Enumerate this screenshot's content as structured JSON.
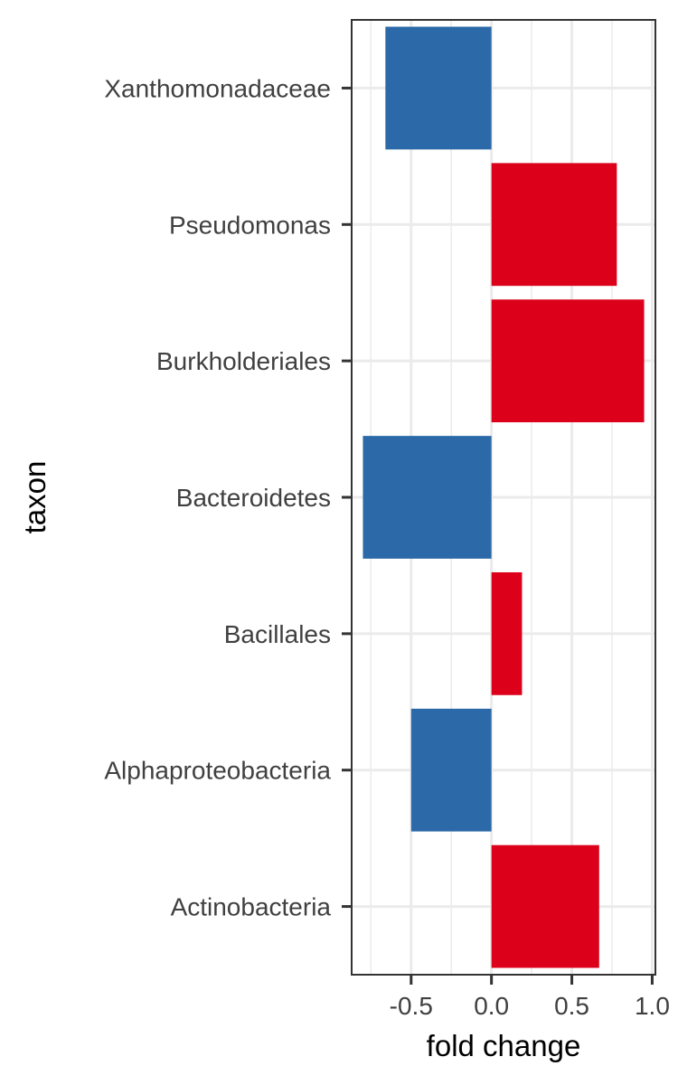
{
  "chart_data": {
    "type": "bar",
    "orientation": "horizontal",
    "xlabel": "fold change",
    "ylabel": "taxon",
    "xlim": [
      -0.87,
      1.02
    ],
    "x_ticks": [
      -0.5,
      0.0,
      0.5,
      1.0
    ],
    "x_tick_labels": [
      "-0.5",
      "0.0",
      "0.5",
      "1.0"
    ],
    "x_minor_ticks": [
      -0.75,
      -0.25,
      0.25,
      0.75
    ],
    "grid": true,
    "categories": [
      "Xanthomonadaceae",
      "Pseudomonas",
      "Burkholderiales",
      "Bacteroidetes",
      "Bacillales",
      "Alphaproteobacteria",
      "Actinobacteria"
    ],
    "values": [
      -0.66,
      0.78,
      0.95,
      -0.8,
      0.19,
      -0.5,
      0.67
    ],
    "colors": {
      "positive": "#DC001A",
      "negative": "#2C69A8"
    }
  }
}
